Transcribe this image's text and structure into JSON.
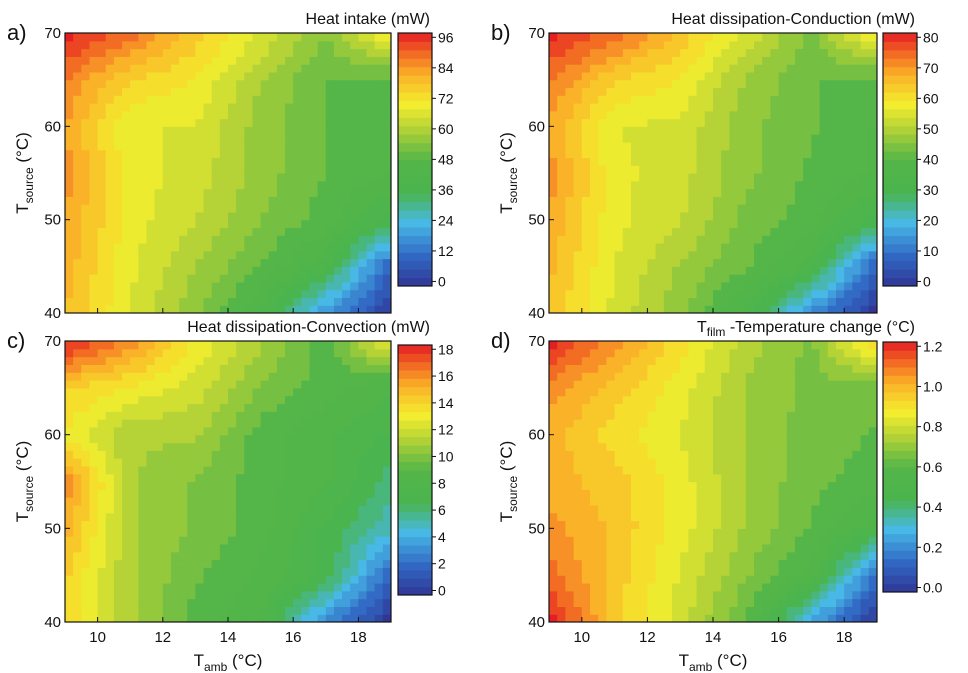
{
  "panels": [
    {
      "letter": "a)",
      "title": "Heat intake (mW)",
      "colorbar": {
        "min": 0,
        "max": 96,
        "ticks": [
          "96",
          "84",
          "72",
          "60",
          "48",
          "36",
          "24",
          "12",
          "0"
        ]
      }
    },
    {
      "letter": "b)",
      "title": "Heat dissipation-Conduction (mW)",
      "colorbar": {
        "min": 0,
        "max": 80,
        "ticks": [
          "80",
          "70",
          "60",
          "50",
          "40",
          "30",
          "20",
          "10",
          "0"
        ]
      }
    },
    {
      "letter": "c)",
      "title": "Heat dissipation-Convection (mW)",
      "colorbar": {
        "min": 0,
        "max": 18,
        "ticks": [
          "18",
          "16",
          "14",
          "12",
          "10",
          "8",
          "6",
          "4",
          "2",
          "0"
        ]
      }
    },
    {
      "letter": "d)",
      "title_main": "T",
      "title_sub": "film",
      "title_rest": " -Temperature change (°C)",
      "colorbar": {
        "min": 0,
        "max": 1.2,
        "ticks": [
          "1.2",
          "1.0",
          "0.8",
          "0.6",
          "0.4",
          "0.2",
          "0.0"
        ]
      }
    }
  ],
  "axes": {
    "y_label_main": "T",
    "y_label_sub": "source",
    "y_label_unit": " (°C)",
    "x_label_main": "T",
    "x_label_sub": "amb",
    "x_label_unit": " (°C)",
    "x_ticks": [
      "10",
      "12",
      "14",
      "16",
      "18"
    ],
    "y_ticks": [
      "40",
      "50",
      "60",
      "70"
    ]
  },
  "chart_data": [
    {
      "type": "heatmap",
      "title": "Heat intake (mW)",
      "xlabel": "Tamb (°C)",
      "ylabel": "Tsource (°C)",
      "xlim": [
        9,
        19
      ],
      "ylim": [
        40,
        70
      ],
      "zlim": [
        0,
        96
      ],
      "x": [
        9,
        11,
        13,
        15,
        17,
        19
      ],
      "y": [
        40,
        45,
        50,
        55,
        60,
        65,
        70
      ],
      "z": [
        [
          78,
          66,
          55,
          42,
          18,
          2
        ],
        [
          80,
          67,
          58,
          50,
          40,
          10
        ],
        [
          82,
          68,
          62,
          54,
          48,
          36
        ],
        [
          84,
          68,
          64,
          56,
          50,
          46
        ],
        [
          82,
          66,
          66,
          56,
          50,
          46
        ],
        [
          86,
          74,
          70,
          58,
          50,
          48
        ],
        [
          96,
          88,
          76,
          66,
          54,
          72
        ]
      ]
    },
    {
      "type": "heatmap",
      "title": "Heat dissipation-Conduction (mW)",
      "xlabel": "Tamb (°C)",
      "ylabel": "Tsource (°C)",
      "xlim": [
        9,
        19
      ],
      "ylim": [
        40,
        70
      ],
      "zlim": [
        0,
        80
      ],
      "x": [
        9,
        11,
        13,
        15,
        17,
        19
      ],
      "y": [
        40,
        45,
        50,
        55,
        60,
        65,
        70
      ],
      "z": [
        [
          64,
          54,
          46,
          34,
          14,
          0
        ],
        [
          66,
          55,
          48,
          42,
          34,
          8
        ],
        [
          68,
          56,
          52,
          44,
          40,
          30
        ],
        [
          70,
          56,
          53,
          46,
          41,
          38
        ],
        [
          68,
          55,
          54,
          46,
          42,
          38
        ],
        [
          72,
          62,
          58,
          48,
          42,
          40
        ],
        [
          80,
          74,
          64,
          54,
          44,
          60
        ]
      ]
    },
    {
      "type": "heatmap",
      "title": "Heat dissipation-Convection (mW)",
      "xlabel": "Tamb (°C)",
      "ylabel": "Tsource (°C)",
      "xlim": [
        9,
        19
      ],
      "ylim": [
        40,
        70
      ],
      "zlim": [
        0,
        18
      ],
      "x": [
        9,
        11,
        13,
        15,
        17,
        19
      ],
      "y": [
        40,
        45,
        50,
        55,
        60,
        65,
        70
      ],
      "z": [
        [
          14,
          11,
          9,
          8,
          3,
          0
        ],
        [
          14,
          11,
          9.5,
          8.5,
          7,
          2
        ],
        [
          15,
          11,
          10,
          9,
          7,
          5
        ],
        [
          16,
          11,
          10,
          9,
          8,
          6
        ],
        [
          13,
          11,
          11,
          9,
          8,
          7
        ],
        [
          14,
          13,
          12,
          10,
          9,
          8
        ],
        [
          18,
          16,
          13,
          11,
          9,
          13
        ]
      ]
    },
    {
      "type": "heatmap",
      "title": "Tfilm -Temperature change (°C)",
      "xlabel": "Tamb (°C)",
      "ylabel": "Tsource (°C)",
      "xlim": [
        9,
        19
      ],
      "ylim": [
        40,
        70
      ],
      "zlim": [
        0,
        1.2
      ],
      "x": [
        9,
        11,
        13,
        15,
        17,
        19
      ],
      "y": [
        40,
        45,
        50,
        55,
        60,
        65,
        70
      ],
      "z": [
        [
          1.2,
          0.95,
          0.8,
          0.62,
          0.25,
          0.0
        ],
        [
          1.1,
          0.95,
          0.82,
          0.68,
          0.55,
          0.15
        ],
        [
          1.05,
          0.96,
          0.85,
          0.72,
          0.62,
          0.5
        ],
        [
          1.0,
          0.95,
          0.85,
          0.72,
          0.64,
          0.6
        ],
        [
          1.0,
          0.9,
          0.82,
          0.72,
          0.65,
          0.62
        ],
        [
          1.05,
          0.95,
          0.85,
          0.72,
          0.66,
          0.64
        ],
        [
          1.2,
          1.05,
          0.9,
          0.75,
          0.66,
          0.95
        ]
      ]
    }
  ]
}
